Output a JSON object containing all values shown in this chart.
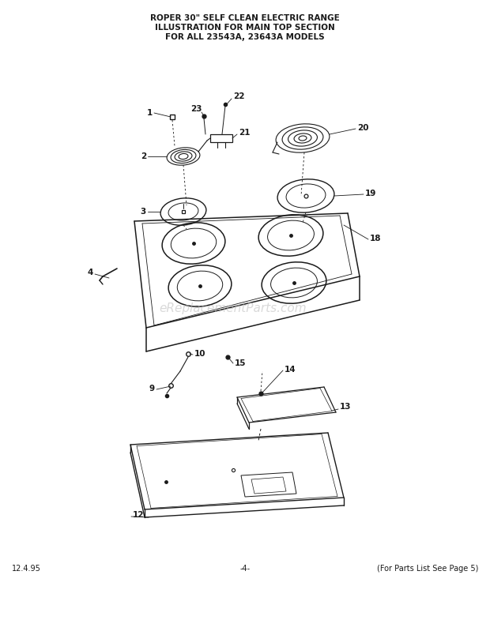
{
  "title_line1": "ROPER 30\" SELF CLEAN ELECTRIC RANGE",
  "title_line2": "ILLUSTRATION FOR MAIN TOP SECTION",
  "title_line3": "FOR ALL 23543A, 23643A MODELS",
  "footer_left": "12.4.95",
  "footer_center": "-4-",
  "footer_right": "(For Parts List See Page 5)",
  "watermark": "eReplacementParts.com",
  "bg_color": "#ffffff",
  "text_color": "#1a1a1a",
  "line_color": "#1a1a1a",
  "watermark_color": "#bbbbbb"
}
